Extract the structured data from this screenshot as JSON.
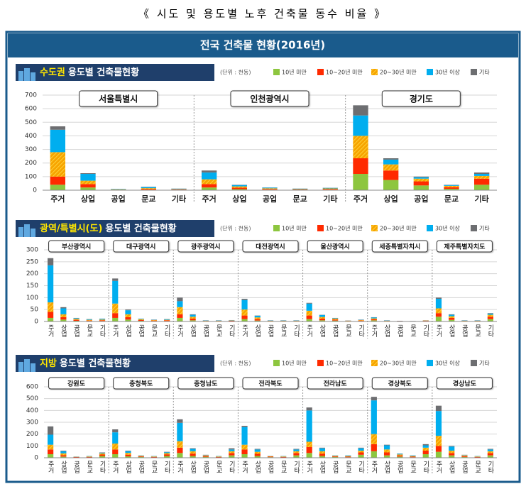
{
  "page": {
    "title": "《 시도 및 용도별 노후 건축물 동수 비율 》",
    "banner": "전국 건축물 현황(2016년)"
  },
  "chart_data": [
    {
      "type": "bar",
      "stacked": true,
      "title_highlight": "수도권",
      "title": "용도별 건축물현황",
      "unit": "(단위 : 천동)",
      "groups": [
        "서울특별시",
        "인천광역시",
        "경기도"
      ],
      "categories": [
        "주거",
        "상업",
        "공업",
        "문교",
        "기타"
      ],
      "ylim": [
        0,
        700
      ],
      "yticks": [
        0,
        100,
        200,
        300,
        400,
        500,
        600,
        700
      ],
      "grid": true,
      "series": [
        {
          "name": "10년 미만",
          "color": "#8dc63f",
          "values": [
            [
              40,
              20,
              1,
              3,
              3
            ],
            [
              20,
              8,
              4,
              2,
              4
            ],
            [
              120,
              75,
              35,
              10,
              40
            ]
          ]
        },
        {
          "name": "10~20년 미만",
          "color": "#ff2a00",
          "values": [
            [
              60,
              25,
              2,
              5,
              3
            ],
            [
              25,
              10,
              5,
              3,
              5
            ],
            [
              115,
              70,
              30,
              12,
              45
            ]
          ]
        },
        {
          "name": "20~30년 미만",
          "color": "#f7a400",
          "hatch": true,
          "values": [
            [
              180,
              25,
              3,
              7,
              2
            ],
            [
              35,
              10,
              5,
              3,
              4
            ],
            [
              165,
              45,
              20,
              10,
              20
            ]
          ]
        },
        {
          "name": "30년 이상",
          "color": "#00aeef",
          "values": [
            [
              165,
              50,
              3,
              8,
              3
            ],
            [
              50,
              10,
              5,
              3,
              4
            ],
            [
              150,
              35,
              10,
              6,
              15
            ]
          ]
        },
        {
          "name": "기타",
          "color": "#6d6e71",
          "values": [
            [
              25,
              5,
              1,
              2,
              1
            ],
            [
              15,
              2,
              1,
              1,
              1
            ],
            [
              75,
              10,
              5,
              2,
              10
            ]
          ]
        }
      ]
    },
    {
      "type": "bar",
      "stacked": true,
      "title_highlight": "광역/특별시(도)",
      "title": "용도별 건축물현황",
      "unit": "(단위 : 천동)",
      "groups": [
        "부산광역시",
        "대구광역시",
        "광주광역시",
        "대전광역시",
        "울산광역시",
        "세종특별자치시",
        "제주특별자치도"
      ],
      "categories": [
        "주거",
        "상업",
        "공업",
        "문교",
        "기타"
      ],
      "ylim": [
        0,
        300
      ],
      "yticks": [
        0,
        50,
        100,
        150,
        200,
        250,
        300
      ],
      "grid": true,
      "series": [
        {
          "name": "10년 미만",
          "color": "#8dc63f",
          "values": [
            [
              15,
              8,
              3,
              2,
              2
            ],
            [
              15,
              8,
              3,
              2,
              2
            ],
            [
              15,
              5,
              1,
              1,
              1
            ],
            [
              10,
              4,
              1,
              1,
              1
            ],
            [
              10,
              5,
              4,
              1,
              2
            ],
            [
              5,
              1,
              1,
              1,
              2
            ],
            [
              20,
              7,
              1,
              1,
              10
            ]
          ]
        },
        {
          "name": "10~20년 미만",
          "color": "#ff2a00",
          "values": [
            [
              25,
              10,
              4,
              2,
              3
            ],
            [
              20,
              10,
              3,
              2,
              3
            ],
            [
              15,
              7,
              1,
              1,
              2
            ],
            [
              15,
              6,
              1,
              1,
              1
            ],
            [
              15,
              7,
              4,
              1,
              2
            ],
            [
              4,
              1,
              1,
              0,
              1
            ],
            [
              15,
              8,
              1,
              1,
              10
            ]
          ]
        },
        {
          "name": "20~30년 미만",
          "color": "#f7a400",
          "hatch": true,
          "values": [
            [
              40,
              12,
              4,
              3,
              3
            ],
            [
              40,
              12,
              3,
              2,
              2
            ],
            [
              30,
              8,
              1,
              1,
              1
            ],
            [
              25,
              7,
              1,
              1,
              1
            ],
            [
              20,
              7,
              4,
              1,
              2
            ],
            [
              4,
              1,
              0,
              0,
              1
            ],
            [
              20,
              7,
              1,
              1,
              8
            ]
          ]
        },
        {
          "name": "30년 이상",
          "color": "#00aeef",
          "values": [
            [
              155,
              25,
              3,
              2,
              3
            ],
            [
              95,
              17,
              2,
              1,
              2
            ],
            [
              25,
              8,
              1,
              1,
              1
            ],
            [
              40,
              7,
              1,
              1,
              1
            ],
            [
              30,
              8,
              2,
              0,
              1
            ],
            [
              4,
              1,
              0,
              0,
              0
            ],
            [
              40,
              6,
              1,
              1,
              5
            ]
          ]
        },
        {
          "name": "기타",
          "color": "#6d6e71",
          "values": [
            [
              30,
              5,
              1,
              1,
              1
            ],
            [
              10,
              3,
              1,
              1,
              1
            ],
            [
              15,
              2,
              1,
              1,
              1
            ],
            [
              5,
              1,
              1,
              1,
              1
            ],
            [
              3,
              1,
              1,
              1,
              1
            ],
            [
              1,
              1,
              1,
              1,
              1
            ],
            [
              5,
              2,
              1,
              1,
              2
            ]
          ]
        }
      ]
    },
    {
      "type": "bar",
      "stacked": true,
      "title_highlight": "지방",
      "title": "용도별 건축물현황",
      "unit": "(단위 : 천동)",
      "groups": [
        "강원도",
        "충청북도",
        "충청남도",
        "전라북도",
        "전라남도",
        "경상북도",
        "경상남도"
      ],
      "categories": [
        "주거",
        "상업",
        "공업",
        "문교",
        "기타"
      ],
      "ylim": [
        0,
        600
      ],
      "yticks": [
        0,
        100,
        200,
        300,
        400,
        500,
        600
      ],
      "grid": true,
      "series": [
        {
          "name": "10년 미만",
          "color": "#8dc63f",
          "values": [
            [
              30,
              10,
              3,
              3,
              15
            ],
            [
              30,
              12,
              6,
              3,
              15
            ],
            [
              40,
              15,
              8,
              3,
              20
            ],
            [
              30,
              15,
              5,
              3,
              20
            ],
            [
              40,
              15,
              6,
              4,
              25
            ],
            [
              55,
              20,
              10,
              4,
              30
            ],
            [
              50,
              20,
              7,
              3,
              20
            ]
          ]
        },
        {
          "name": "10~20년 미만",
          "color": "#ff2a00",
          "values": [
            [
              40,
              12,
              3,
              4,
              12
            ],
            [
              40,
              14,
              5,
              4,
              14
            ],
            [
              45,
              20,
              7,
              4,
              20
            ],
            [
              40,
              18,
              4,
              4,
              20
            ],
            [
              50,
              20,
              5,
              5,
              20
            ],
            [
              60,
              25,
              10,
              5,
              30
            ],
            [
              50,
              20,
              7,
              4,
              20
            ]
          ]
        },
        {
          "name": "20~30년 미만",
          "color": "#f7a400",
          "hatch": true,
          "values": [
            [
              40,
              15,
              2,
              4,
              10
            ],
            [
              50,
              15,
              5,
              4,
              10
            ],
            [
              55,
              20,
              5,
              4,
              15
            ],
            [
              40,
              17,
              3,
              4,
              15
            ],
            [
              45,
              20,
              5,
              5,
              15
            ],
            [
              85,
              25,
              8,
              5,
              25
            ],
            [
              85,
              20,
              6,
              4,
              15
            ]
          ]
        },
        {
          "name": "30년 이상",
          "color": "#00aeef",
          "values": [
            [
              85,
              18,
              1,
              3,
              5
            ],
            [
              95,
              15,
              3,
              3,
              8
            ],
            [
              155,
              20,
              3,
              3,
              15
            ],
            [
              150,
              20,
              2,
              3,
              15
            ],
            [
              265,
              25,
              3,
              5,
              20
            ],
            [
              285,
              35,
              5,
              5,
              20
            ],
            [
              210,
              35,
              3,
              3,
              15
            ]
          ]
        },
        {
          "name": "기타",
          "color": "#6d6e71",
          "values": [
            [
              70,
              5,
              1,
              1,
              3
            ],
            [
              25,
              4,
              1,
              1,
              3
            ],
            [
              30,
              5,
              2,
              1,
              10
            ],
            [
              10,
              5,
              1,
              1,
              5
            ],
            [
              25,
              5,
              1,
              1,
              5
            ],
            [
              30,
              5,
              2,
              1,
              10
            ],
            [
              45,
              5,
              2,
              1,
              5
            ]
          ]
        }
      ]
    }
  ]
}
